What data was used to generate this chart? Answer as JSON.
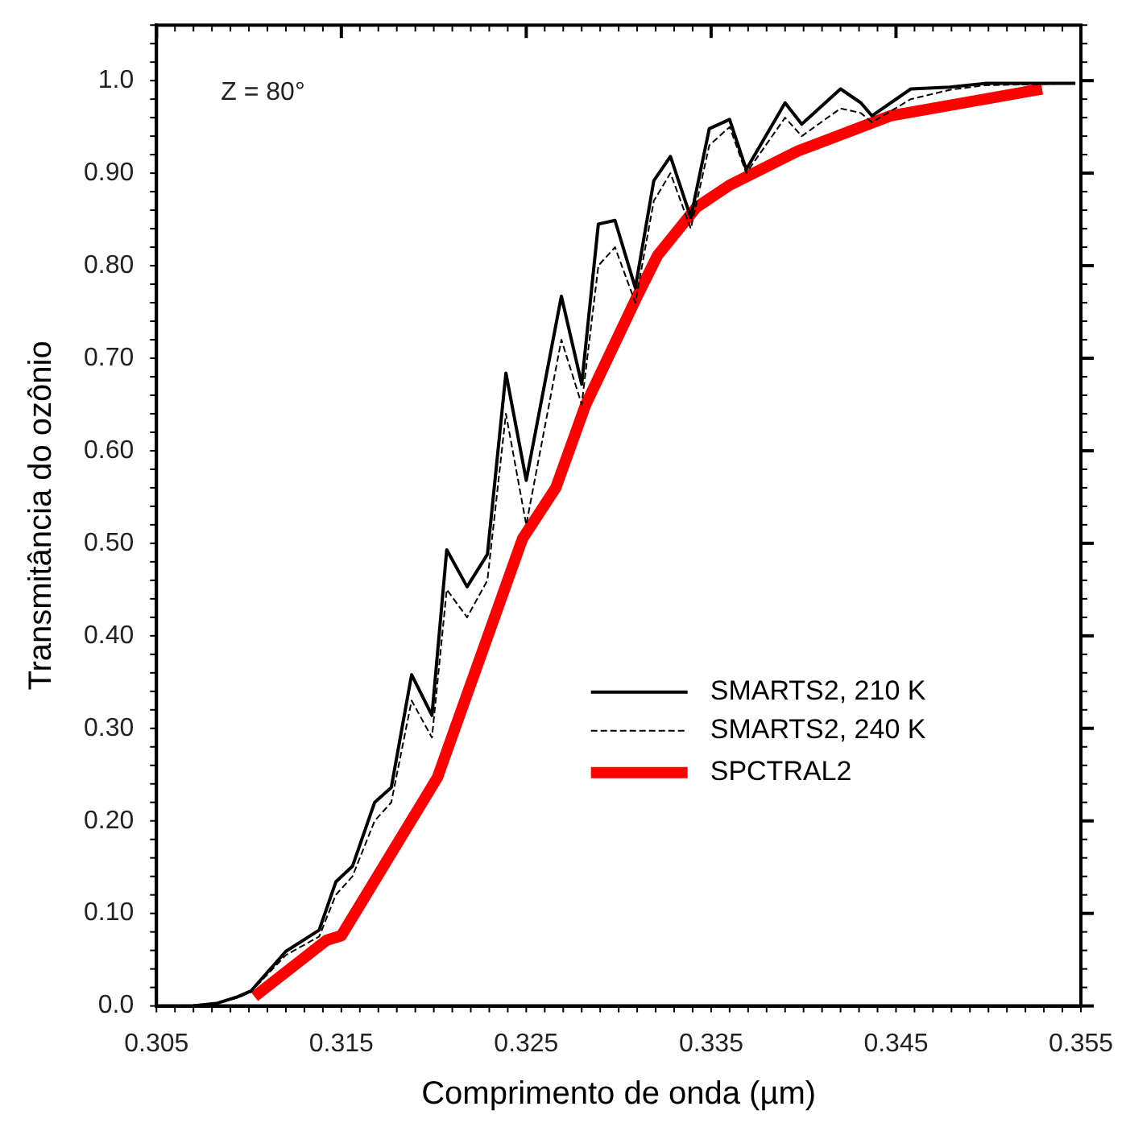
{
  "chart_data": {
    "type": "line",
    "xlabel": "Comprimento de onda (µm)",
    "ylabel": "Transmitância do ozônio",
    "annotations": [
      "Z = 80°"
    ],
    "xlim": [
      0.305,
      0.355
    ],
    "xticks": [
      0.305,
      0.315,
      0.325,
      0.335,
      0.345,
      0.355
    ],
    "ylim": [
      0,
      1.06
    ],
    "yticks": [
      {
        "value": 0,
        "label": "0.0"
      },
      {
        "value": 0.1,
        "label": "0.10"
      },
      {
        "value": 0.2,
        "label": "0.20"
      },
      {
        "value": 0.3,
        "label": "0.30"
      },
      {
        "value": 0.4,
        "label": "0.40"
      },
      {
        "value": 0.5,
        "label": "0.50"
      },
      {
        "value": 0.6,
        "label": "0.60"
      },
      {
        "value": 0.7,
        "label": "0.70"
      },
      {
        "value": 0.8,
        "label": "0.80"
      },
      {
        "value": 0.9,
        "label": "0.90"
      },
      {
        "value": 1.0,
        "label": "1.0"
      }
    ],
    "grid": false,
    "legend": "right",
    "marker": "none",
    "series": [
      {
        "name": "SMARTS2, 210 K",
        "color": "#000000",
        "line_style": "solid",
        "x": [
          0.307,
          0.3083,
          0.3094,
          0.3101,
          0.312,
          0.3138,
          0.3147,
          0.3156,
          0.3168,
          0.3177,
          0.3188,
          0.3199,
          0.3207,
          0.3218,
          0.3229,
          0.3239,
          0.325,
          0.3269,
          0.328,
          0.3289,
          0.3298,
          0.3309,
          0.3319,
          0.3328,
          0.3339,
          0.3349,
          0.336,
          0.3369,
          0.339,
          0.3399,
          0.342,
          0.3431,
          0.3437,
          0.3458,
          0.3479,
          0.3498,
          0.3547
        ],
        "values": [
          0,
          0.003,
          0.01,
          0.016,
          0.059,
          0.082,
          0.134,
          0.151,
          0.22,
          0.236,
          0.358,
          0.314,
          0.493,
          0.453,
          0.488,
          0.684,
          0.568,
          0.767,
          0.672,
          0.845,
          0.849,
          0.776,
          0.892,
          0.918,
          0.852,
          0.948,
          0.958,
          0.904,
          0.976,
          0.953,
          0.991,
          0.976,
          0.962,
          0.991,
          0.993,
          0.997,
          0.997
        ]
      },
      {
        "name": "SMARTS2, 240 K",
        "color": "#000000",
        "line_style": "dashed",
        "x": [
          0.307,
          0.3083,
          0.3094,
          0.3101,
          0.312,
          0.3138,
          0.3147,
          0.3156,
          0.3168,
          0.3177,
          0.3188,
          0.3199,
          0.3207,
          0.3218,
          0.3229,
          0.3239,
          0.325,
          0.3269,
          0.328,
          0.3289,
          0.3298,
          0.3309,
          0.3319,
          0.3328,
          0.3339,
          0.3349,
          0.336,
          0.3369,
          0.339,
          0.3399,
          0.342,
          0.3431,
          0.3437,
          0.3458,
          0.3479,
          0.3498,
          0.3547
        ],
        "values": [
          0,
          0.003,
          0.009,
          0.015,
          0.055,
          0.075,
          0.12,
          0.14,
          0.2,
          0.22,
          0.33,
          0.29,
          0.45,
          0.42,
          0.46,
          0.64,
          0.52,
          0.72,
          0.65,
          0.8,
          0.82,
          0.76,
          0.87,
          0.9,
          0.84,
          0.93,
          0.95,
          0.9,
          0.96,
          0.94,
          0.97,
          0.965,
          0.955,
          0.98,
          0.99,
          0.995,
          0.997
        ]
      },
      {
        "name": "SPCTRAL2",
        "color": "#ff0000",
        "line_style": "solid",
        "x": [
          0.3103,
          0.3142,
          0.315,
          0.3202,
          0.3248,
          0.3266,
          0.3282,
          0.331,
          0.3321,
          0.3342,
          0.336,
          0.3397,
          0.3447,
          0.3529
        ],
        "values": [
          0.01,
          0.071,
          0.076,
          0.247,
          0.505,
          0.56,
          0.649,
          0.767,
          0.811,
          0.863,
          0.887,
          0.924,
          0.962,
          0.991
        ]
      }
    ]
  }
}
